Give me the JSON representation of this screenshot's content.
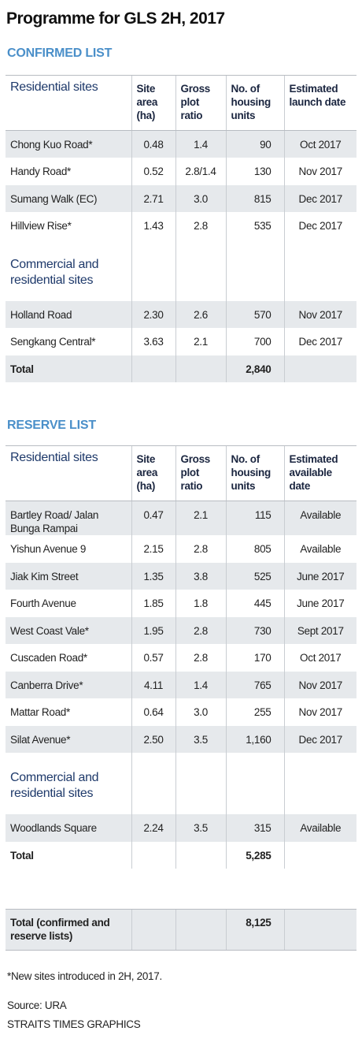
{
  "title": "Programme for GLS 2H, 2017",
  "sections": [
    {
      "heading": "CONFIRMED LIST",
      "columns": [
        "Residential sites",
        "Site area (ha)",
        "Gross plot ratio",
        "No. of housing units",
        "Estimated launch date"
      ],
      "residential": [
        [
          "Chong Kuo Road*",
          "0.48",
          "1.4",
          "90",
          "Oct 2017"
        ],
        [
          "Handy Road*",
          "0.52",
          "2.8/1.4",
          "130",
          "Nov 2017"
        ],
        [
          "Sumang Walk (EC)",
          "2.71",
          "3.0",
          "815",
          "Dec 2017"
        ],
        [
          "Hillview Rise*",
          "1.43",
          "2.8",
          "535",
          "Dec 2017"
        ]
      ],
      "commercial_label": "Commercial and residential sites",
      "commercial": [
        [
          "Holland Road",
          "2.30",
          "2.6",
          "570",
          "Nov 2017"
        ],
        [
          "Sengkang Central*",
          "3.63",
          "2.1",
          "700",
          "Dec 2017"
        ]
      ],
      "total": [
        "Total",
        "2,840"
      ]
    },
    {
      "heading": "RESERVE LIST",
      "columns": [
        "Residential sites",
        "Site area (ha)",
        "Gross plot ratio",
        "No. of housing units",
        "Estimated available date"
      ],
      "residential": [
        [
          "Bartley Road/ Jalan Bunga Rampai",
          "0.47",
          "2.1",
          "115",
          "Available"
        ],
        [
          "Yishun Avenue 9",
          "2.15",
          "2.8",
          "805",
          "Available"
        ],
        [
          "Jiak Kim Street",
          "1.35",
          "3.8",
          "525",
          "June 2017"
        ],
        [
          "Fourth Avenue",
          "1.85",
          "1.8",
          "445",
          "June 2017"
        ],
        [
          "West Coast Vale*",
          "1.95",
          "2.8",
          "730",
          "Sept 2017"
        ],
        [
          "Cuscaden Road*",
          "0.57",
          "2.8",
          "170",
          "Oct 2017"
        ],
        [
          "Canberra Drive*",
          "4.11",
          "1.4",
          "765",
          "Nov 2017"
        ],
        [
          "Mattar Road*",
          "0.64",
          "3.0",
          "255",
          "Nov 2017"
        ],
        [
          "Silat Avenue*",
          "2.50",
          "3.5",
          "1,160",
          "Dec 2017"
        ]
      ],
      "commercial_label": "Commercial and residential sites",
      "commercial": [
        [
          "Woodlands Square",
          "2.24",
          "3.5",
          "315",
          "Available"
        ]
      ],
      "total": [
        "Total",
        "5,285"
      ]
    }
  ],
  "grand_total": [
    "Total (confirmed and reserve lists)",
    "8,125"
  ],
  "footnote": "*New sites introduced in 2H, 2017.",
  "source": "Source: URA",
  "credit": "STRAITS TIMES GRAPHICS"
}
